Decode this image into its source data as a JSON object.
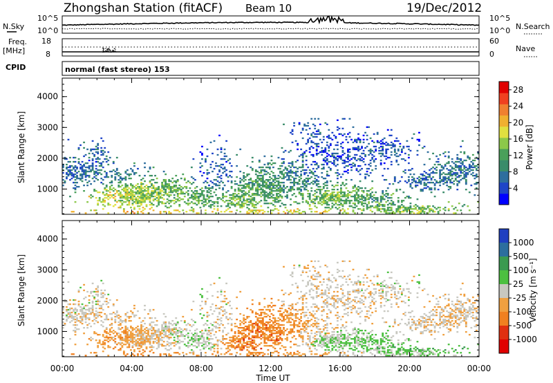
{
  "header": {
    "station": "Zhongshan Station (fitACF)",
    "beam": "Beam 10",
    "date": "19/Dec/2012",
    "cpid_label": "CPID",
    "cpid_value": "normal (fast stereo) 153"
  },
  "top_panels": {
    "nsky": {
      "label": "N.Sky",
      "ticks": [
        "10^5",
        "10^0"
      ],
      "right_label": "N.Search",
      "right_ticks": [
        "10^5",
        "10^0"
      ]
    },
    "freq": {
      "label_line1": "Freq.",
      "label_line2": "[MHz]",
      "ticks": [
        "18",
        "8"
      ],
      "right_label": "Nave",
      "right_ticks": [
        "60",
        "0"
      ]
    }
  },
  "chart_data": [
    {
      "type": "heatmap",
      "title": "",
      "xlabel": "",
      "ylabel": "Slant Range [km]",
      "x_ticks": [
        "00:00",
        "04:00",
        "08:00",
        "12:00",
        "16:00",
        "20:00",
        "00:00"
      ],
      "y_ticks": [
        "1000",
        "2000",
        "3000",
        "4000"
      ],
      "ylim": [
        180,
        4600
      ],
      "x_range_hours": [
        0,
        24
      ],
      "colorbar": {
        "label": "Power [dB]",
        "ticks": [
          "4",
          "8",
          "12",
          "16",
          "20",
          "24",
          "28"
        ],
        "range": [
          0,
          30
        ],
        "colors": [
          "#0000ff",
          "#1f45c8",
          "#2e6e9e",
          "#3a8c6a",
          "#4aa05a",
          "#8cc84a",
          "#e0e040",
          "#f0b030",
          "#f08030",
          "#f04020",
          "#e00000"
        ]
      }
    },
    {
      "type": "heatmap",
      "title": "",
      "xlabel": "Time UT",
      "ylabel": "Slant Range [km]",
      "x_ticks": [
        "00:00",
        "04:00",
        "08:00",
        "12:00",
        "16:00",
        "20:00",
        "00:00"
      ],
      "y_ticks": [
        "1000",
        "2000",
        "3000",
        "4000"
      ],
      "ylim": [
        180,
        4600
      ],
      "x_range_hours": [
        0,
        24
      ],
      "colorbar": {
        "label": "Velocity [m s⁻¹]",
        "ticks": [
          "1000",
          "500",
          "100",
          "25",
          "-25",
          "-100",
          "-500",
          "-1000"
        ],
        "colors": [
          "#1f3fc0",
          "#2c6e9e",
          "#3a9a50",
          "#4cc040",
          "#c8c8c0",
          "#f0a040",
          "#f08020",
          "#e03010",
          "#e00000"
        ]
      }
    }
  ]
}
